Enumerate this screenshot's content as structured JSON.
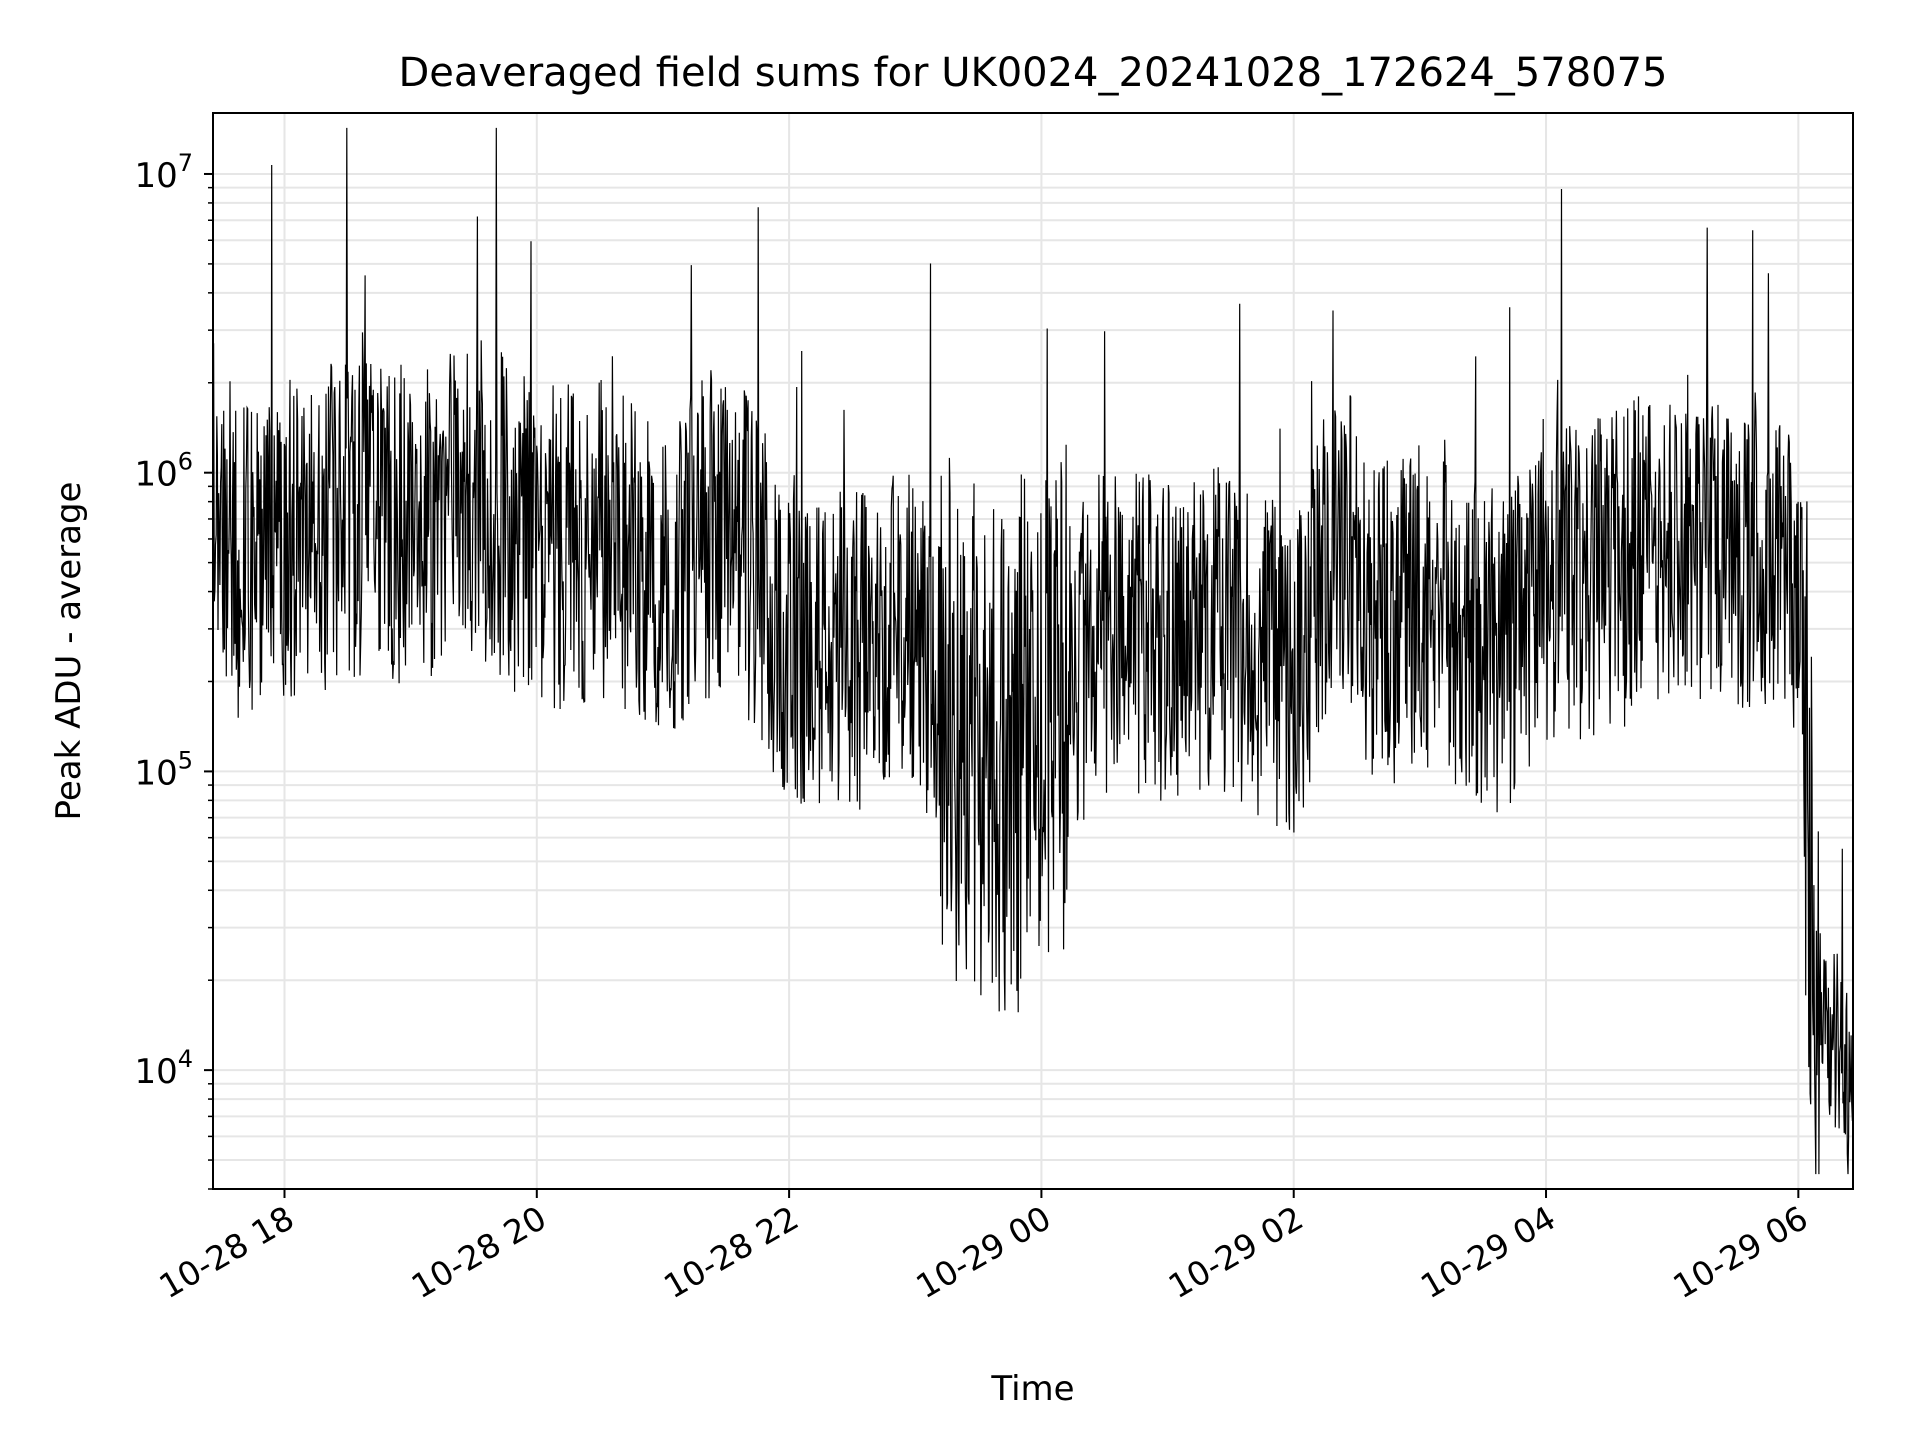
{
  "chart_data": {
    "type": "line",
    "title": "Deaveraged field sums for UK0024_20241028_172624_578075",
    "xlabel": "Time",
    "ylabel": "Peak ADU - average",
    "yscale": "log",
    "ylim": [
      4000,
      16000000
    ],
    "xlim": [
      "2024-10-28 17:26",
      "2024-10-29 06:26"
    ],
    "grid": true,
    "x_ticks": [
      "10-28 18",
      "10-28 20",
      "10-28 22",
      "10-29 00",
      "10-29 02",
      "10-29 04",
      "10-29 06"
    ],
    "y_ticks": [
      {
        "value": 10000,
        "base": "10",
        "exp": "4"
      },
      {
        "value": 100000,
        "base": "10",
        "exp": "5"
      },
      {
        "value": 1000000,
        "base": "10",
        "exp": "6"
      },
      {
        "value": 10000000,
        "base": "10",
        "exp": "7"
      }
    ],
    "line_color": "#000000",
    "series": [
      {
        "x": [
          "2024-10-28 17:26",
          "2024-10-28 17:40",
          "2024-10-28 18:00",
          "2024-10-28 18:30",
          "2024-10-28 19:00",
          "2024-10-28 19:30",
          "2024-10-28 20:00",
          "2024-10-28 20:30",
          "2024-10-28 21:00",
          "2024-10-28 21:30",
          "2024-10-28 22:00",
          "2024-10-28 22:30",
          "2024-10-28 23:00",
          "2024-10-28 23:20",
          "2024-10-28 23:40",
          "2024-10-29 00:00",
          "2024-10-29 00:30",
          "2024-10-29 01:00",
          "2024-10-29 01:30",
          "2024-10-29 02:00",
          "2024-10-29 02:20",
          "2024-10-29 02:40",
          "2024-10-29 03:00",
          "2024-10-29 03:20",
          "2024-10-29 03:40",
          "2024-10-29 04:00",
          "2024-10-29 04:30",
          "2024-10-29 05:00",
          "2024-10-29 05:30",
          "2024-10-29 06:00",
          "2024-10-29 06:10",
          "2024-10-29 06:20",
          "2024-10-29 06:26"
        ],
        "values": [
          700000,
          500000,
          600000,
          700000,
          650000,
          900000,
          550000,
          600000,
          450000,
          700000,
          280000,
          250000,
          300000,
          150000,
          100000,
          150000,
          300000,
          280000,
          300000,
          200000,
          700000,
          300000,
          350000,
          300000,
          250000,
          450000,
          450000,
          600000,
          600000,
          400000,
          15000,
          12000,
          7000
        ]
      }
    ]
  }
}
